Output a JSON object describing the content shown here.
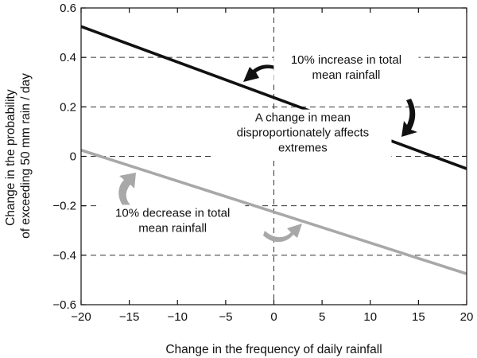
{
  "chart_data": {
    "type": "line",
    "title": "",
    "xlabel": "Change in the frequency of daily rainfall",
    "ylabel_lines": [
      "Change in the probability",
      "of exceeding 50 mm rain / day"
    ],
    "xlim": [
      -20,
      20
    ],
    "ylim": [
      -0.6,
      0.6
    ],
    "x_ticks": [
      -20,
      -15,
      -10,
      -5,
      0,
      5,
      10,
      15,
      20
    ],
    "x_tick_labels": [
      "−20",
      "−15",
      "−10",
      "−5",
      "0",
      "5",
      "10",
      "15",
      "20"
    ],
    "y_ticks": [
      0.6,
      0.4,
      0.2,
      0,
      -0.2,
      -0.4,
      -0.6
    ],
    "y_tick_labels": [
      "0.6",
      "0.4",
      "0.2",
      "0",
      "−0.2",
      "−0.4",
      "−0.6"
    ],
    "grid": "dashed at y = ±0.2, ±0.4 and x = 0, y = 0",
    "series": [
      {
        "x": [
          -20,
          20
        ],
        "y": [
          0.525,
          -0.05
        ],
        "color": "#111111"
      },
      {
        "x": [
          -20,
          20
        ],
        "y": [
          0.025,
          -0.475
        ],
        "color": "#a8a8a8"
      }
    ],
    "annotations": [
      {
        "lines": [
          "10% increase in total",
          "mean rainfall"
        ],
        "x": 7.5,
        "y": 0.345
      },
      {
        "lines": [
          "A change in mean",
          "disproportionately affects",
          "extremes"
        ],
        "x": 3.0,
        "y": 0.08
      },
      {
        "lines": [
          "10% decrease in total",
          "mean rainfall"
        ],
        "x": -10.5,
        "y": -0.275
      }
    ]
  }
}
